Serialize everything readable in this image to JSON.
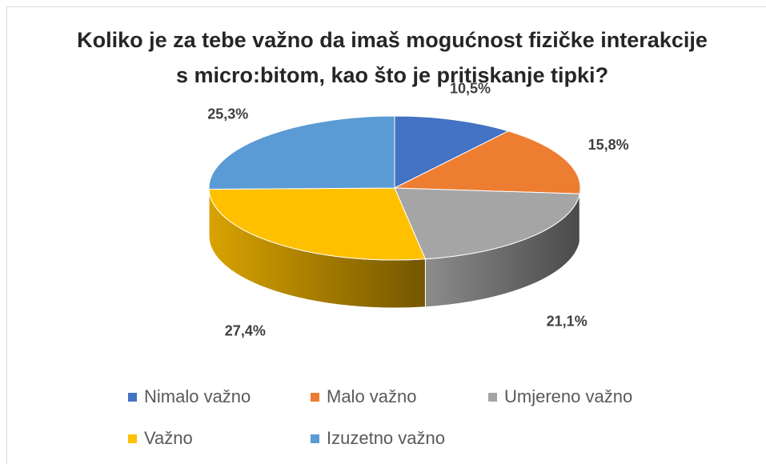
{
  "chart_data": {
    "type": "pie",
    "title": "Koliko je za tebe važno da imaš mogućnost fizičke interakcije s micro:bitom, kao što je pritiskanje tipki?",
    "categories": [
      "Nimalo važno",
      "Malo važno",
      "Umjereno važno",
      "Važno",
      "Izuzetno važno"
    ],
    "values": [
      10.5,
      15.8,
      21.1,
      27.4,
      25.3
    ],
    "value_labels": [
      "10,5%",
      "15,8%",
      "21,1%",
      "27,4%",
      "25,3%"
    ],
    "colors": [
      "#4472c4",
      "#ed7d31",
      "#a5a5a5",
      "#ffc000",
      "#5b9bd5"
    ],
    "legend": "bottom"
  }
}
